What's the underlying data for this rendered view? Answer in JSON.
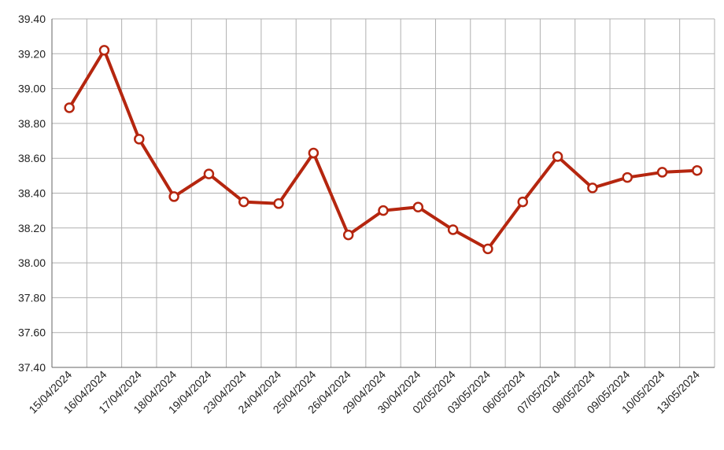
{
  "chart_data": {
    "type": "line",
    "categories": [
      "15/04/2024",
      "16/04/2024",
      "17/04/2024",
      "18/04/2024",
      "19/04/2024",
      "23/04/2024",
      "24/04/2024",
      "25/04/2024",
      "26/04/2024",
      "29/04/2024",
      "30/04/2024",
      "02/05/2024",
      "03/05/2024",
      "06/05/2024",
      "07/05/2024",
      "08/05/2024",
      "09/05/2024",
      "10/05/2024",
      "13/05/2024"
    ],
    "series": [
      {
        "color": "#b5260f",
        "values": [
          38.89,
          39.22,
          38.71,
          38.38,
          38.51,
          38.35,
          38.34,
          38.63,
          38.16,
          38.3,
          38.32,
          38.19,
          38.08,
          38.35,
          38.61,
          38.43,
          38.49,
          38.52,
          38.53
        ]
      }
    ],
    "ylim": [
      37.4,
      39.4
    ],
    "yticks": [
      {
        "value": 37.4,
        "label": "37.40"
      },
      {
        "value": 37.6,
        "label": "37.60"
      },
      {
        "value": 37.8,
        "label": "37.80"
      },
      {
        "value": 38.0,
        "label": "38.00"
      },
      {
        "value": 38.2,
        "label": "38.20"
      },
      {
        "value": 38.4,
        "label": "38.40"
      },
      {
        "value": 38.6,
        "label": "38.60"
      },
      {
        "value": 38.8,
        "label": "38.80"
      },
      {
        "value": 39.0,
        "label": "39.00"
      },
      {
        "value": 39.2,
        "label": "39.20"
      },
      {
        "value": 39.4,
        "label": "39.40"
      }
    ],
    "grid": true
  }
}
